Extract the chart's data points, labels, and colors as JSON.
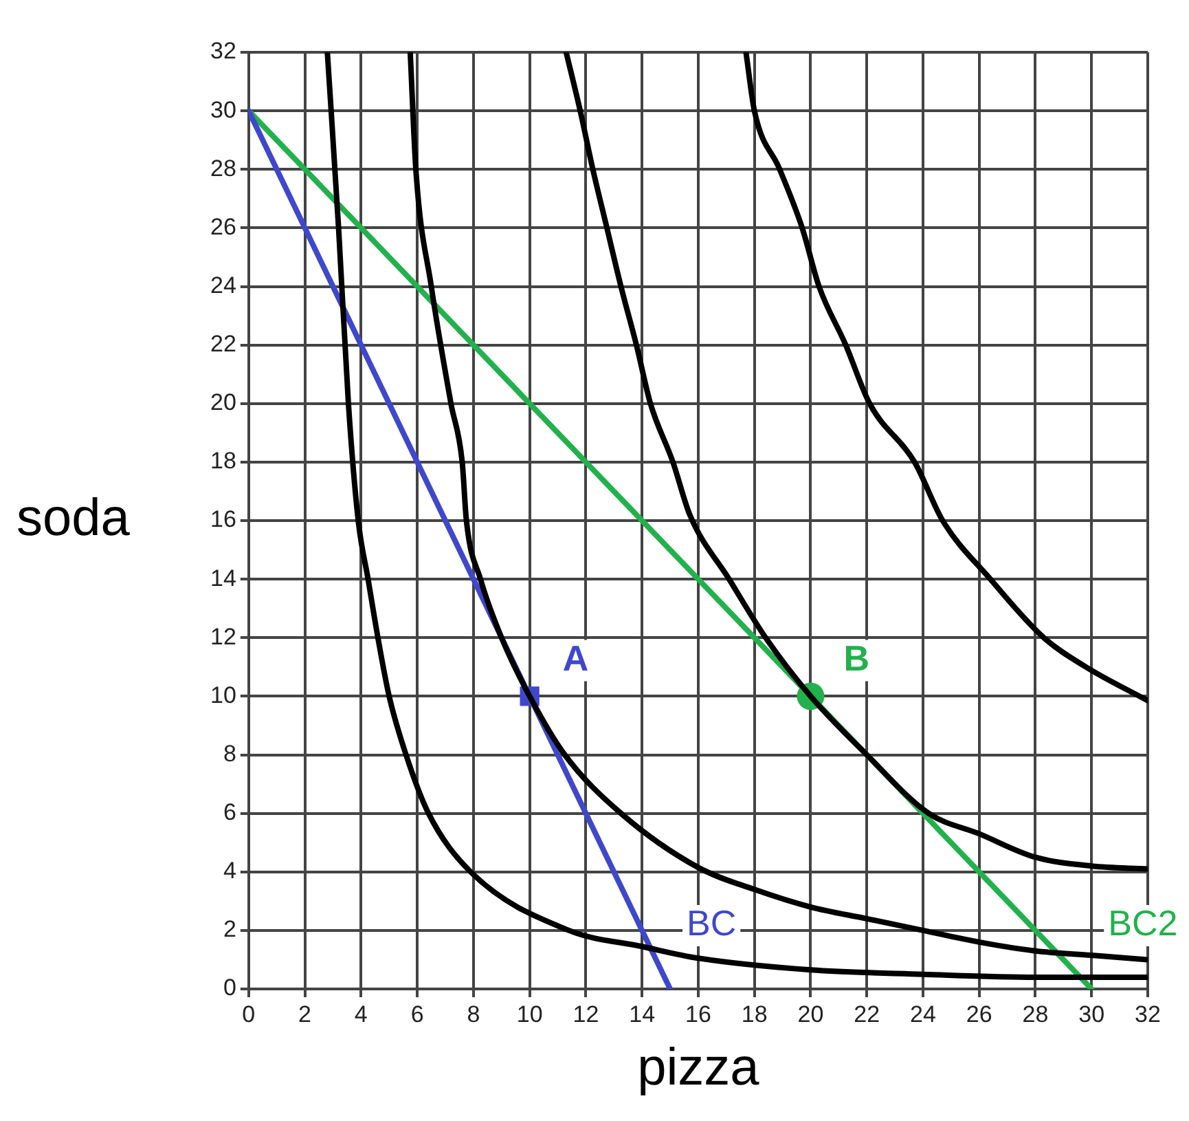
{
  "chart_data": {
    "type": "line",
    "xlabel": "pizza",
    "ylabel": "soda",
    "xlim": [
      0,
      32
    ],
    "ylim": [
      0,
      32
    ],
    "xticks": [
      0,
      2,
      4,
      6,
      8,
      10,
      12,
      14,
      16,
      18,
      20,
      22,
      24,
      26,
      28,
      30,
      32
    ],
    "yticks": [
      0,
      2,
      4,
      6,
      8,
      10,
      12,
      14,
      16,
      18,
      20,
      22,
      24,
      26,
      28,
      30,
      32
    ],
    "grid": true,
    "legend": false,
    "series": [
      {
        "color": "#000000",
        "marker": "none",
        "x": [
          2.8,
          3.2,
          3.55,
          3.9,
          4.25,
          4.6,
          5.0,
          5.6,
          6.4,
          7.9,
          11.4,
          14,
          16,
          20,
          24,
          28,
          32
        ],
        "values": [
          32,
          26,
          20,
          16,
          14,
          12,
          10,
          8,
          6,
          4,
          2,
          1.45,
          1.05,
          0.65,
          0.5,
          0.4,
          0.4
        ]
      },
      {
        "color": "#000000",
        "marker": "none",
        "x": [
          5.75,
          5.95,
          6.5,
          7.2,
          7.6,
          7.75,
          8.25,
          9.0,
          10,
          11.25,
          13.25,
          16,
          18,
          20,
          22,
          24,
          26,
          28,
          30,
          32
        ],
        "values": [
          32,
          28,
          24,
          20,
          18,
          16,
          14,
          12,
          10,
          8,
          6,
          4.15,
          3.4,
          2.8,
          2.4,
          2.0,
          1.6,
          1.3,
          1.15,
          1.0
        ]
      },
      {
        "color": "#000000",
        "marker": "none",
        "x": [
          11.3,
          11.8,
          12.25,
          12.75,
          13.25,
          13.8,
          14.3,
          15.1,
          15.7,
          17.1,
          18.4,
          20,
          22,
          24.2,
          26,
          28,
          30,
          32
        ],
        "values": [
          32,
          30,
          28,
          26,
          24,
          22,
          20,
          18,
          16.2,
          14,
          12,
          10,
          8,
          6,
          5.3,
          4.5,
          4.2,
          4.1
        ]
      },
      {
        "color": "#000000",
        "marker": "none",
        "x": [
          17.7,
          18,
          18.9,
          19.7,
          20.3,
          21.25,
          22.1,
          23.7,
          24.7,
          26.4,
          28.3,
          29.8,
          32
        ],
        "values": [
          32,
          30,
          28,
          26,
          24,
          22,
          20,
          18,
          16,
          14,
          12,
          11,
          9.85
        ]
      },
      {
        "name": "BC",
        "color": "#3f48cc",
        "marker": "none",
        "x": [
          0,
          15
        ],
        "values": [
          30,
          0
        ]
      },
      {
        "name": "BC2",
        "color": "#22b14c",
        "marker": "none",
        "x": [
          0,
          30
        ],
        "values": [
          30,
          0
        ]
      },
      {
        "type": "scatter",
        "name": "A",
        "color": "#3f48cc",
        "marker": "square",
        "x": [
          10
        ],
        "values": [
          10
        ]
      },
      {
        "type": "scatter",
        "name": "B",
        "color": "#22b14c",
        "marker": "circle",
        "x": [
          20
        ],
        "values": [
          10
        ]
      }
    ]
  }
}
